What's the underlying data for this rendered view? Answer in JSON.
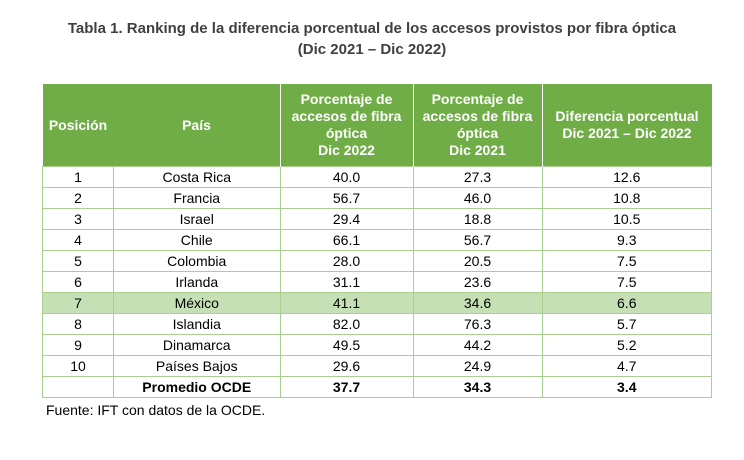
{
  "title": {
    "line1": "Tabla 1. Ranking de la diferencia porcentual de los accesos provistos por fibra óptica",
    "line2": "(Dic 2021 – Dic 2022)"
  },
  "headers": {
    "position": "Posición",
    "country": "País",
    "pct_2022": [
      "Porcentaje de",
      "accesos de fibra",
      "óptica",
      "Dic 2022"
    ],
    "pct_2021": [
      "Porcentaje de",
      "accesos de fibra",
      "óptica",
      "Dic 2021"
    ],
    "diff": [
      "Diferencia porcentual",
      "Dic 2021 – Dic 2022"
    ]
  },
  "rows": [
    {
      "pos": "1",
      "country": "Costa Rica",
      "v2022": "40.0",
      "v2021": "27.3",
      "diff": "12.6"
    },
    {
      "pos": "2",
      "country": "Francia",
      "v2022": "56.7",
      "v2021": "46.0",
      "diff": "10.8"
    },
    {
      "pos": "3",
      "country": "Israel",
      "v2022": "29.4",
      "v2021": "18.8",
      "diff": "10.5"
    },
    {
      "pos": "4",
      "country": "Chile",
      "v2022": "66.1",
      "v2021": "56.7",
      "diff": "9.3"
    },
    {
      "pos": "5",
      "country": "Colombia",
      "v2022": "28.0",
      "v2021": "20.5",
      "diff": "7.5"
    },
    {
      "pos": "6",
      "country": "Irlanda",
      "v2022": "31.1",
      "v2021": "23.6",
      "diff": "7.5"
    },
    {
      "pos": "7",
      "country": "México",
      "v2022": "41.1",
      "v2021": "34.6",
      "diff": "6.6",
      "highlight": true
    },
    {
      "pos": "8",
      "country": "Islandia",
      "v2022": "82.0",
      "v2021": "76.3",
      "diff": "5.7"
    },
    {
      "pos": "9",
      "country": "Dinamarca",
      "v2022": "49.5",
      "v2021": "44.2",
      "diff": "5.2"
    },
    {
      "pos": "10",
      "country": "Países Bajos",
      "v2022": "29.6",
      "v2021": "24.9",
      "diff": "4.7"
    }
  ],
  "average": {
    "label": "Promedio OCDE",
    "v2022": "37.7",
    "v2021": "34.3",
    "diff": "3.4"
  },
  "source": "Fuente: IFT con datos de la OCDE.",
  "colors": {
    "header": "#70ad47",
    "highlight": "#c5e0b4",
    "border": "#a9d08e"
  }
}
